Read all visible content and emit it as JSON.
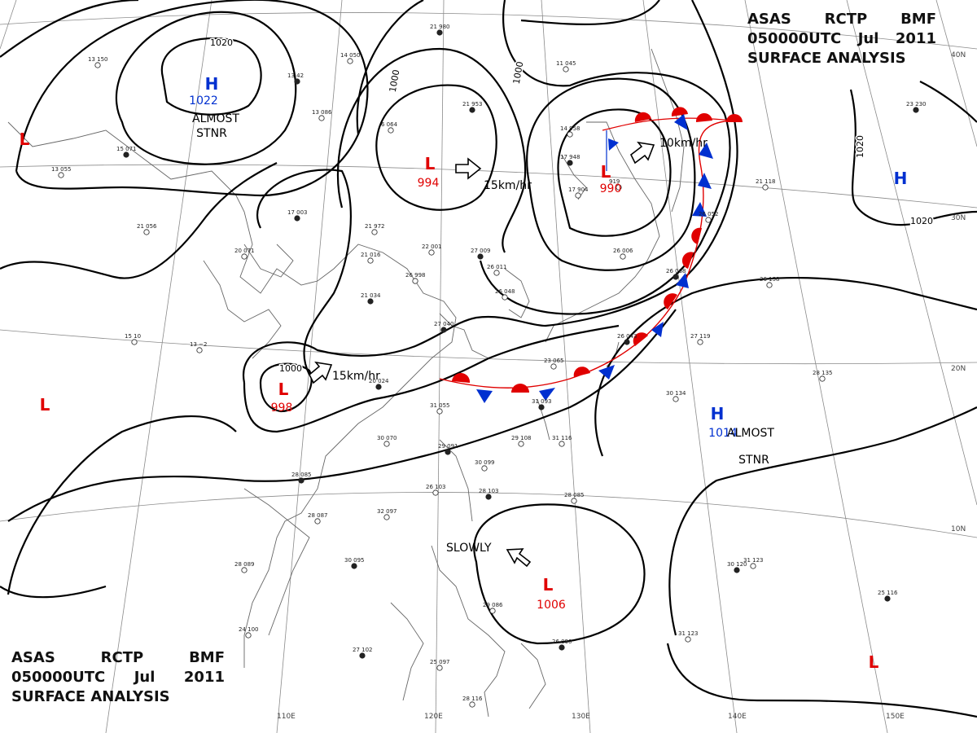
{
  "header": {
    "line1": [
      "ASAS",
      "RCTP",
      "BMF"
    ],
    "line2": [
      "050000UTC",
      "Jul",
      "2011"
    ],
    "line3": "SURFACE ANALYSIS"
  },
  "colors": {
    "low": "#e00000",
    "high": "#0030d0",
    "warm_front": "#e00000",
    "cold_front": "#0030d0",
    "isobar": "#000000",
    "grid": "#7a7a7a",
    "coast": "#555555"
  },
  "isobar_labels": [
    "1020",
    "1000",
    "1000",
    "1000",
    "1020",
    "1020"
  ],
  "pressure_systems": [
    {
      "type": "H",
      "value": "1022",
      "note": [
        "ALMOST",
        "STNR"
      ]
    },
    {
      "type": "H",
      "value": "",
      "note": []
    },
    {
      "type": "H",
      "value": "1014",
      "note": [
        "ALMOST",
        "STNR"
      ]
    },
    {
      "type": "L",
      "value": "994",
      "note": []
    },
    {
      "type": "L",
      "value": "990",
      "note": []
    },
    {
      "type": "L",
      "value": "998",
      "note": []
    },
    {
      "type": "L",
      "value": "1006",
      "note": []
    },
    {
      "type": "L",
      "value": "",
      "note": []
    },
    {
      "type": "L",
      "value": "",
      "note": []
    },
    {
      "type": "L",
      "value": "",
      "note": []
    }
  ],
  "motions": [
    "15km/hr",
    "10km/hr",
    "15km/hr",
    "SLOWLY"
  ],
  "lon_labels": [
    "110E",
    "120E",
    "130E",
    "140E",
    "150E"
  ],
  "lat_labels": [
    "10N",
    "20N",
    "30N",
    "40N"
  ],
  "stations": [
    "21 980",
    "14 050",
    "13 150",
    "13 42",
    "13 086",
    "6 064",
    "21 953",
    "14 958",
    "11 045",
    "17 948",
    "17 904",
    "919",
    "23 230",
    "21 118",
    "13 055",
    "15 071",
    "20 071",
    "21 056",
    "17 003",
    "21 972",
    "22 001",
    "27 009",
    "26 011",
    "26 998",
    "21 034",
    "21 016",
    "26 048",
    "27 040",
    "13 −2",
    "15 10",
    "20 024",
    "31 055",
    "30 070",
    "29 091",
    "29 108",
    "31 116",
    "28 085",
    "28 087",
    "32 097",
    "30 095",
    "28 089",
    "24 100",
    "27 102",
    "25 097",
    "28 116",
    "26 090",
    "29 086",
    "28 085",
    "30 120",
    "31 123",
    "31 123",
    "25 116",
    "30 134",
    "27 119",
    "26 068",
    "26 052",
    "26 006",
    "26 043",
    "28 135",
    "26 158",
    "28 103",
    "23 065",
    "30 099",
    "31 093",
    "26 103"
  ]
}
